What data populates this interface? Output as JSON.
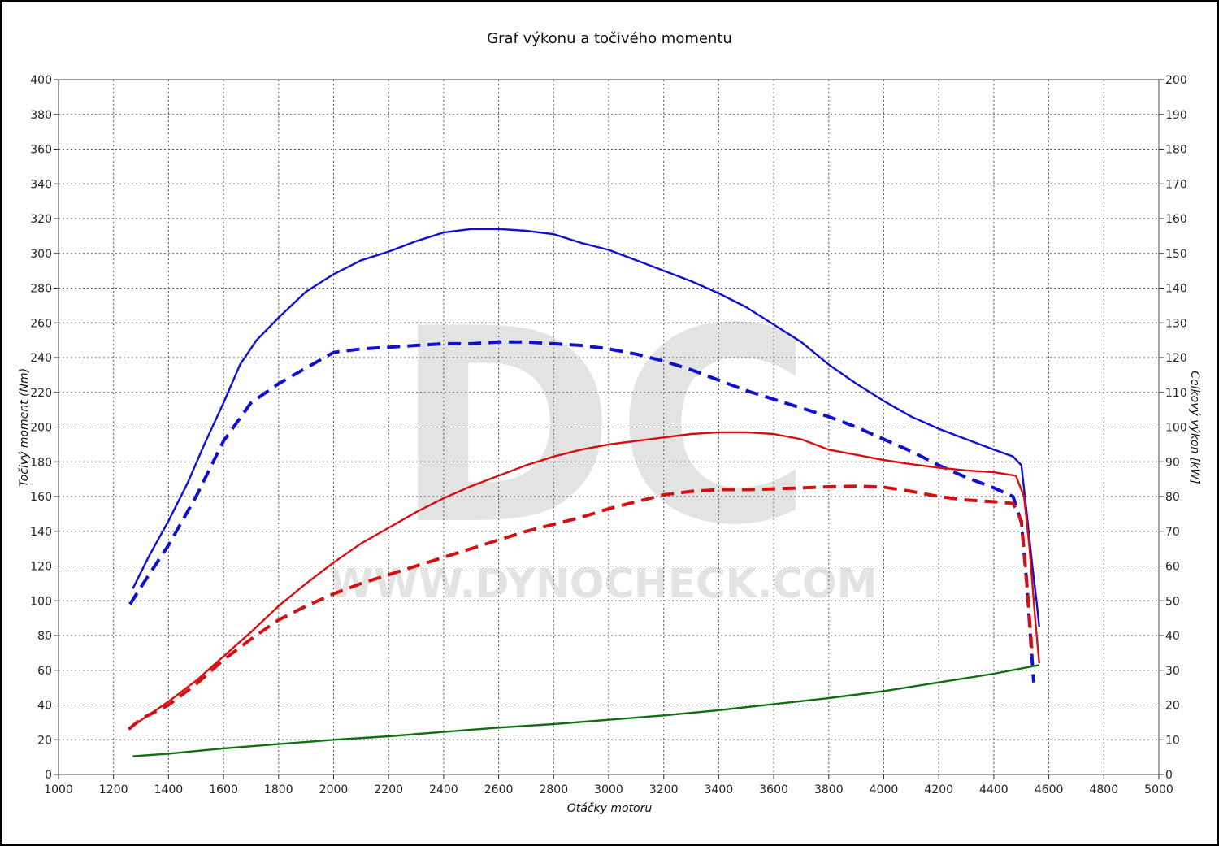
{
  "chart_data": {
    "type": "line",
    "title": "Graf výkonu a točivého momentu",
    "xlabel": "Otáčky motoru",
    "ylabel_left": "Točivý moment (Nm)",
    "ylabel_right": "Celkový výkon [kW]",
    "xlim": [
      1000,
      5000
    ],
    "ylim_left": [
      0,
      400
    ],
    "ylim_right": [
      0,
      200
    ],
    "x_ticks": [
      1000,
      1200,
      1400,
      1600,
      1800,
      2000,
      2200,
      2400,
      2600,
      2800,
      3000,
      3200,
      3400,
      3600,
      3800,
      4000,
      4200,
      4400,
      4600,
      4800,
      5000
    ],
    "y_ticks_left": [
      0,
      20,
      40,
      60,
      80,
      100,
      120,
      140,
      160,
      180,
      200,
      220,
      240,
      260,
      280,
      300,
      320,
      340,
      360,
      380,
      400
    ],
    "y_ticks_right": [
      0,
      10,
      20,
      30,
      40,
      50,
      60,
      70,
      80,
      90,
      100,
      110,
      120,
      130,
      140,
      150,
      160,
      170,
      180,
      190,
      200
    ],
    "grid": true,
    "watermark": {
      "logo": "DC",
      "text": "WWW.DYNOCHECK.COM"
    },
    "series": [
      {
        "color": "#1010d0",
        "style": "solid",
        "axis": "left",
        "x": [
          1270,
          1330,
          1400,
          1470,
          1530,
          1600,
          1660,
          1720,
          1800,
          1900,
          2000,
          2100,
          2200,
          2300,
          2400,
          2500,
          2600,
          2700,
          2800,
          2900,
          3000,
          3100,
          3200,
          3300,
          3400,
          3500,
          3600,
          3700,
          3800,
          3900,
          4000,
          4100,
          4200,
          4300,
          4400,
          4470,
          4500,
          4520,
          4540,
          4555,
          4565
        ],
        "y": [
          107,
          126,
          146,
          168,
          190,
          214,
          236,
          250,
          263,
          278,
          288,
          296,
          301,
          307,
          312,
          314,
          314,
          313,
          311,
          306,
          302,
          296,
          290,
          284,
          277,
          269,
          259,
          249,
          236,
          225,
          215,
          206,
          199,
          193,
          187,
          183,
          178,
          150,
          120,
          100,
          85
        ]
      },
      {
        "color": "#1010d0",
        "style": "dashed",
        "axis": "left",
        "x": [
          1260,
          1300,
          1400,
          1500,
          1600,
          1700,
          1800,
          1900,
          2000,
          2100,
          2200,
          2300,
          2400,
          2500,
          2600,
          2700,
          2800,
          2900,
          3000,
          3100,
          3200,
          3300,
          3400,
          3500,
          3600,
          3700,
          3800,
          3900,
          4000,
          4100,
          4200,
          4300,
          4400,
          4470,
          4500,
          4520,
          4535,
          4545
        ],
        "y": [
          98,
          108,
          132,
          160,
          192,
          214,
          225,
          234,
          243,
          245,
          246,
          247,
          248,
          248,
          249,
          249,
          248,
          247,
          245,
          242,
          238,
          233,
          227,
          221,
          216,
          211,
          206,
          200,
          193,
          186,
          178,
          171,
          165,
          160,
          145,
          110,
          75,
          53
        ]
      },
      {
        "color": "#d41010",
        "style": "solid",
        "axis": "right",
        "x": [
          1270,
          1400,
          1500,
          1600,
          1700,
          1800,
          1900,
          2000,
          2100,
          2200,
          2300,
          2400,
          2500,
          2600,
          2700,
          2800,
          2900,
          3000,
          3100,
          3200,
          3300,
          3400,
          3500,
          3600,
          3700,
          3800,
          3900,
          4000,
          4100,
          4200,
          4300,
          4400,
          4480,
          4510,
          4530,
          4550,
          4565
        ],
        "y": [
          14,
          21,
          27,
          34,
          41,
          48.5,
          55,
          61,
          66.5,
          71,
          75.5,
          79.5,
          83,
          86,
          89,
          91.5,
          93.5,
          95,
          96,
          97,
          98,
          98.5,
          98.5,
          98,
          96.5,
          93.5,
          92,
          90.5,
          89.3,
          88.3,
          87.5,
          87,
          86,
          80,
          65,
          45,
          32
        ]
      },
      {
        "color": "#d41010",
        "style": "dashed",
        "axis": "right",
        "x": [
          1255,
          1300,
          1400,
          1500,
          1600,
          1700,
          1800,
          1900,
          2000,
          2100,
          2200,
          2300,
          2400,
          2500,
          2600,
          2700,
          2800,
          2900,
          3000,
          3100,
          3200,
          3300,
          3400,
          3500,
          3600,
          3700,
          3800,
          3900,
          4000,
          4100,
          4200,
          4300,
          4400,
          4470,
          4500,
          4520,
          4540
        ],
        "y": [
          13,
          16,
          20,
          26,
          33,
          39,
          44.5,
          48.5,
          52,
          55,
          57.5,
          60,
          62.5,
          65,
          67.5,
          70,
          72,
          74,
          76.5,
          78.5,
          80.5,
          81.5,
          82,
          82,
          82.2,
          82.5,
          82.8,
          83,
          82.7,
          81.5,
          80,
          79,
          78.5,
          78,
          73,
          55,
          34
        ]
      },
      {
        "color": "#107010",
        "style": "solid",
        "axis": "left",
        "x": [
          1270,
          1400,
          1600,
          1800,
          2000,
          2200,
          2400,
          2600,
          2800,
          3000,
          3200,
          3400,
          3600,
          3800,
          4000,
          4200,
          4400,
          4565
        ],
        "y": [
          10.5,
          12,
          15,
          17.5,
          20,
          22,
          24.5,
          27,
          29,
          31.5,
          34,
          37,
          40.5,
          44,
          48,
          53,
          58,
          63
        ]
      }
    ]
  }
}
